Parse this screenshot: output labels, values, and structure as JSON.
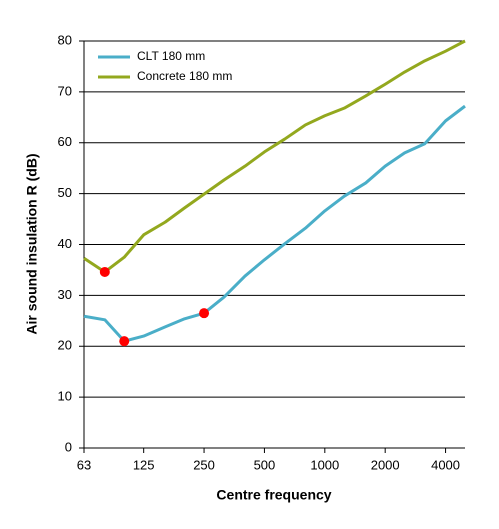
{
  "chart_data": {
    "type": "line",
    "xlabel": "Centre frequency",
    "ylabel": "Air sound insulation R (dB)",
    "x": [
      63,
      80,
      100,
      125,
      160,
      200,
      250,
      315,
      400,
      500,
      630,
      800,
      1000,
      1250,
      1600,
      2000,
      2500,
      3150,
      4000,
      5000
    ],
    "xscale": "log",
    "xlim": [
      63,
      5000
    ],
    "xticks": [
      63,
      125,
      250,
      500,
      1000,
      2000,
      4000
    ],
    "ylim": [
      0,
      80
    ],
    "yticks": [
      0,
      10,
      20,
      30,
      40,
      50,
      60,
      70,
      80
    ],
    "grid": true,
    "legend": "upper left",
    "highlight_color": "#ff0000",
    "series": [
      {
        "name": "CLT 180 mm",
        "color": "#4aaec8",
        "values": [
          25.9,
          25.2,
          21.0,
          22.0,
          23.8,
          25.4,
          26.5,
          29.7,
          33.8,
          37.0,
          40.1,
          43.2,
          46.6,
          49.5,
          52.1,
          55.4,
          58.0,
          59.8,
          64.3,
          67.2
        ],
        "highlight": [
          2,
          6
        ]
      },
      {
        "name": "Concrete 180 mm",
        "color": "#93a81e",
        "values": [
          37.3,
          34.6,
          37.5,
          41.9,
          44.4,
          47.2,
          49.9,
          52.7,
          55.4,
          58.2,
          60.7,
          63.5,
          65.3,
          66.8,
          69.2,
          71.5,
          73.9,
          76.1,
          78.0,
          80.0
        ],
        "highlight": [
          1
        ]
      }
    ]
  }
}
